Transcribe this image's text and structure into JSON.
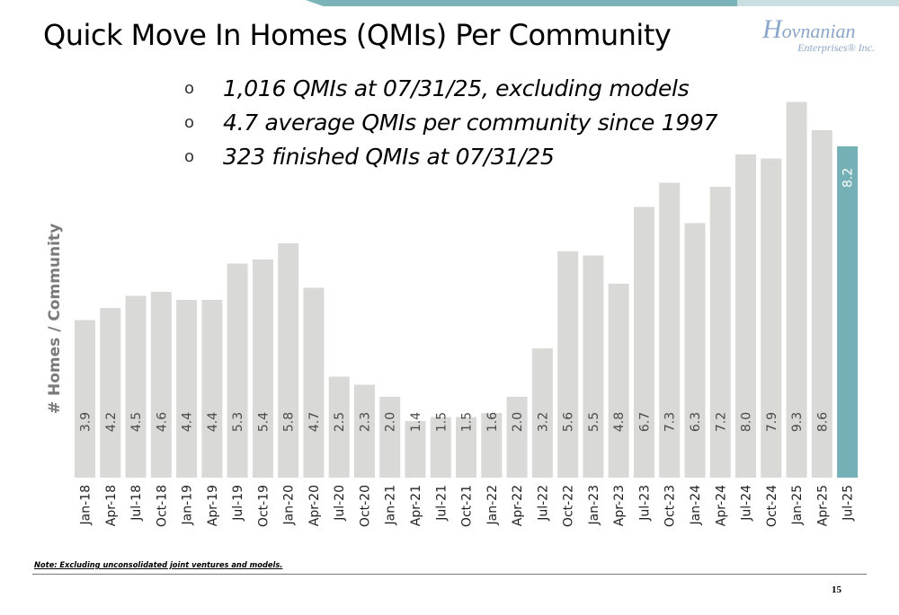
{
  "page": {
    "title": "Quick Move In Homes (QMIs) Per Community",
    "logo": {
      "main_initial": "H",
      "main_rest": "ovnanian",
      "sub": "Enterprises® Inc.",
      "color": "#8aa6c8"
    },
    "bullets": [
      "1,016 QMIs at 07/31/25, excluding models",
      "4.7 average QMIs per community since 1997",
      "323 finished QMIs at 07/31/25"
    ],
    "bullet_glyph": "o",
    "footnote": "Note: Excluding unconsolidated joint ventures and models.",
    "page_number": "15"
  },
  "chart_data": {
    "type": "bar",
    "title": "",
    "xlabel": "",
    "ylabel": "# Homes / Community",
    "ylim": [
      0,
      10
    ],
    "grid": false,
    "categories": [
      "Jan-18",
      "Apr-18",
      "Jul-18",
      "Oct-18",
      "Jan-19",
      "Apr-19",
      "Jul-19",
      "Oct-19",
      "Jan-20",
      "Apr-20",
      "Jul-20",
      "Oct-20",
      "Jan-21",
      "Apr-21",
      "Jul-21",
      "Oct-21",
      "Jan-22",
      "Apr-22",
      "Jul-22",
      "Oct-22",
      "Jan-23",
      "Apr-23",
      "Jul-23",
      "Oct-23",
      "Jan-24",
      "Apr-24",
      "Jul-24",
      "Oct-24",
      "Jan-25",
      "Apr-25",
      "Jul-25"
    ],
    "values": [
      3.9,
      4.2,
      4.5,
      4.6,
      4.4,
      4.4,
      5.3,
      5.4,
      5.8,
      4.7,
      2.5,
      2.3,
      2.0,
      1.4,
      1.5,
      1.5,
      1.6,
      2.0,
      3.2,
      5.6,
      5.5,
      4.8,
      6.7,
      7.3,
      6.3,
      7.2,
      8.0,
      7.9,
      9.3,
      8.6,
      8.2
    ],
    "data_labels": [
      "3.9",
      "4.2",
      "4.5",
      "4.6",
      "4.4",
      "4.4",
      "5.3",
      "5.4",
      "5.8",
      "4.7",
      "2.5",
      "2.3",
      "2.0",
      "1.4",
      "1.5",
      "1.5",
      "1.6",
      "2.0",
      "3.2",
      "5.6",
      "5.5",
      "4.8",
      "6.7",
      "7.3",
      "6.3",
      "7.2",
      "8.0",
      "7.9",
      "9.3",
      "8.6",
      "8.2"
    ],
    "colors": {
      "bar": "#d9d9d8",
      "highlight": "#74b0b5",
      "label": "#4a4a4a",
      "label_highlight": "#ffffff"
    },
    "highlight_index": 30
  }
}
